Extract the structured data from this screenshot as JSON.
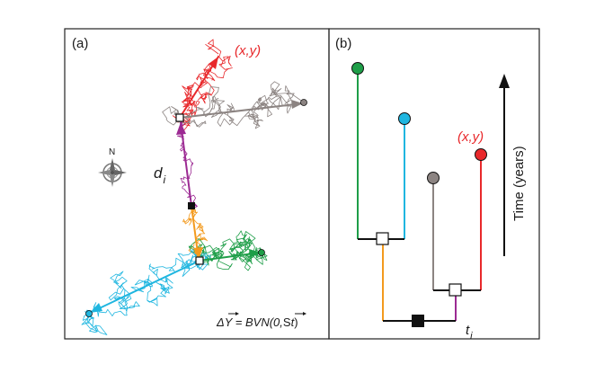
{
  "panel_a": {
    "label": "(a)",
    "point_label": "(x,y)",
    "distance_label": "d",
    "distance_sub": "i",
    "compass_label": "N",
    "formula": {
      "lhs": "ΔY",
      "equals": " = BVN(0,",
      "sigma": "S",
      "t": "t",
      "close": ")"
    }
  },
  "panel_b": {
    "label": "(b)",
    "point_label": "(x,y)",
    "axis_label": "Time (years)",
    "time_label": "t",
    "time_sub": "i"
  },
  "colors": {
    "green": "#1e9e48",
    "cyan": "#1fb6e0",
    "gray": "#8c8482",
    "red": "#e8282b",
    "orange": "#f39a1e",
    "purple": "#9c2a93",
    "black": "#111111"
  },
  "icons": [
    "compass-rose-icon",
    "up-arrow-icon"
  ]
}
